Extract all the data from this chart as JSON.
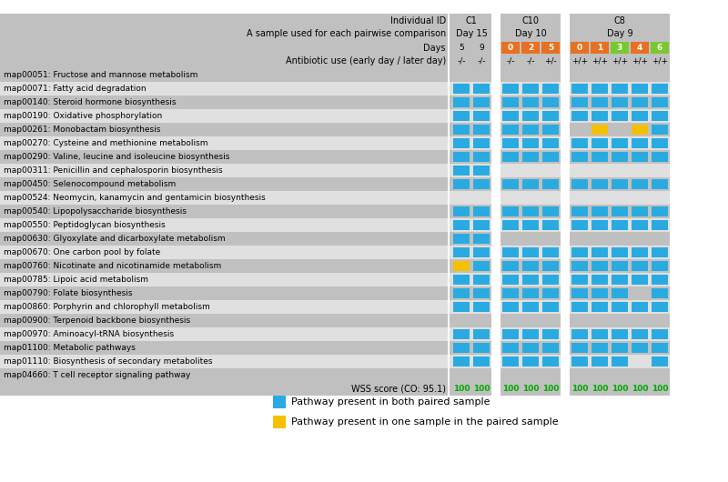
{
  "pathways": [
    "map00051: Fructose and mannose metabolism",
    "map00071: Fatty acid degradation",
    "map00140: Steroid hormone biosynthesis",
    "map00190: Oxidative phosphorylation",
    "map00261: Monobactam biosynthesis",
    "map00270: Cysteine and methionine metabolism",
    "map00290: Valine, leucine and isoleucine biosynthesis",
    "map00311: Penicillin and cephalosporin biosynthesis",
    "map00450: Selenocompound metabolism",
    "map00524: Neomycin, kanamycin and gentamicin biosynthesis",
    "map00540: Lipopolysaccharide biosynthesis",
    "map00550: Peptidoglycan biosynthesis",
    "map00630: Glyoxylate and dicarboxylate metabolism",
    "map00670: One carbon pool by folate",
    "map00760: Nicotinate and nicotinamide metabolism",
    "map00785: Lipoic acid metabolism",
    "map00790: Folate biosynthesis",
    "map00860: Porphyrin and chlorophyll metabolism",
    "map00900: Terpenoid backbone biosynthesis",
    "map00970: Aminoacyl-tRNA biosynthesis",
    "map01100: Metabolic pathways",
    "map01110: Biosynthesis of secondary metabolites",
    "map04660: T cell receptor signaling pathway"
  ],
  "c1_days": [
    "5",
    "9"
  ],
  "c1_antibiotic": [
    "-/-",
    "-/-"
  ],
  "c10_days": [
    "0",
    "2",
    "5"
  ],
  "c10_antibiotic": [
    "-/-",
    "-/-",
    "+/-"
  ],
  "c10_day_colors": [
    "#E87020",
    "#E87020",
    "#E87020"
  ],
  "c8_days": [
    "0",
    "1",
    "3",
    "4",
    "6"
  ],
  "c8_antibiotic": [
    "+/+",
    "+/+",
    "+/+",
    "+/+",
    "+/+"
  ],
  "c8_day_colors": [
    "#E87020",
    "#E87020",
    "#78C830",
    "#E87020",
    "#78C830"
  ],
  "cell_data_c1": [
    [
      0,
      0
    ],
    [
      1,
      1
    ],
    [
      1,
      1
    ],
    [
      1,
      1
    ],
    [
      1,
      1
    ],
    [
      1,
      1
    ],
    [
      1,
      1
    ],
    [
      1,
      1
    ],
    [
      1,
      1
    ],
    [
      0,
      0
    ],
    [
      1,
      1
    ],
    [
      1,
      1
    ],
    [
      1,
      1
    ],
    [
      1,
      1
    ],
    [
      2,
      1
    ],
    [
      1,
      1
    ],
    [
      1,
      1
    ],
    [
      1,
      1
    ],
    [
      0,
      0
    ],
    [
      1,
      1
    ],
    [
      1,
      1
    ],
    [
      1,
      1
    ],
    [
      0,
      0
    ]
  ],
  "cell_data_c10": [
    [
      0,
      0,
      0
    ],
    [
      1,
      1,
      1
    ],
    [
      1,
      1,
      1
    ],
    [
      1,
      1,
      1
    ],
    [
      1,
      1,
      1
    ],
    [
      1,
      1,
      1
    ],
    [
      1,
      1,
      1
    ],
    [
      0,
      0,
      0
    ],
    [
      1,
      1,
      1
    ],
    [
      0,
      0,
      0
    ],
    [
      1,
      1,
      1
    ],
    [
      1,
      1,
      1
    ],
    [
      0,
      0,
      0
    ],
    [
      1,
      1,
      1
    ],
    [
      1,
      1,
      1
    ],
    [
      1,
      1,
      1
    ],
    [
      1,
      1,
      1
    ],
    [
      1,
      1,
      1
    ],
    [
      0,
      0,
      0
    ],
    [
      1,
      1,
      1
    ],
    [
      1,
      1,
      1
    ],
    [
      1,
      1,
      1
    ],
    [
      0,
      0,
      0
    ]
  ],
  "cell_data_c8": [
    [
      0,
      0,
      0,
      0,
      0
    ],
    [
      1,
      1,
      1,
      1,
      1
    ],
    [
      1,
      1,
      1,
      1,
      1
    ],
    [
      1,
      1,
      1,
      1,
      1
    ],
    [
      0,
      2,
      0,
      2,
      1
    ],
    [
      1,
      1,
      1,
      1,
      1
    ],
    [
      1,
      1,
      1,
      1,
      1
    ],
    [
      0,
      0,
      0,
      0,
      0
    ],
    [
      1,
      1,
      1,
      1,
      1
    ],
    [
      0,
      0,
      0,
      0,
      0
    ],
    [
      1,
      1,
      1,
      1,
      1
    ],
    [
      1,
      1,
      1,
      1,
      1
    ],
    [
      0,
      0,
      0,
      0,
      0
    ],
    [
      1,
      1,
      1,
      1,
      1
    ],
    [
      1,
      1,
      1,
      1,
      1
    ],
    [
      1,
      1,
      1,
      1,
      1
    ],
    [
      1,
      1,
      1,
      0,
      1
    ],
    [
      1,
      1,
      1,
      1,
      1
    ],
    [
      0,
      0,
      0,
      0,
      0
    ],
    [
      1,
      1,
      1,
      1,
      1
    ],
    [
      1,
      1,
      1,
      1,
      1
    ],
    [
      1,
      1,
      1,
      0,
      1
    ],
    [
      0,
      0,
      0,
      0,
      0
    ]
  ],
  "colors": {
    "blue": "#29ABE2",
    "yellow": "#F5C000",
    "gray_dark": "#C0C0C0",
    "gray_light": "#E0E0E0",
    "gray_mid": "#D0D0D0",
    "orange": "#E87020",
    "green": "#78C830",
    "wss_green": "#00AA00",
    "white": "#FFFFFF"
  },
  "legend": [
    {
      "color": "#29ABE2",
      "label": "Pathway present in both paired sample"
    },
    {
      "color": "#F5C000",
      "label": "Pathway present in one sample in the paired sample"
    }
  ]
}
